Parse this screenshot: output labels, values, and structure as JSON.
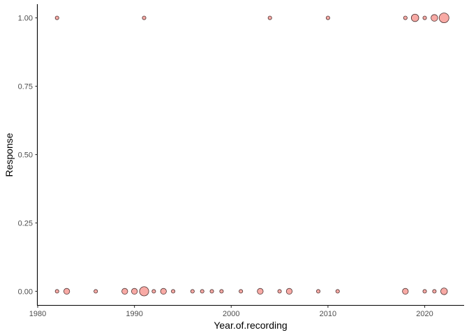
{
  "chart_data": {
    "type": "scatter",
    "title": "",
    "xlabel": "Year.of.recording",
    "ylabel": "Response",
    "xlim": [
      1980,
      2024
    ],
    "ylim": [
      -0.05,
      1.05
    ],
    "x_ticks": [
      1980,
      1990,
      2000,
      2010,
      2020
    ],
    "x_tick_labels": [
      "1980",
      "1990",
      "2000",
      "2010",
      "2020"
    ],
    "y_ticks": [
      0,
      0.25,
      0.5,
      0.75,
      1
    ],
    "y_tick_labels": [
      "0.00",
      "0.25",
      "0.50",
      "0.75",
      "1.00"
    ],
    "grid": false,
    "legend": "none",
    "point_fill": "#f8a5a0",
    "point_stroke": "#4a3030",
    "size_meaning": "count of observations",
    "points": [
      {
        "x": 1982,
        "y": 1,
        "n": 1
      },
      {
        "x": 1991,
        "y": 1,
        "n": 1
      },
      {
        "x": 2004,
        "y": 1,
        "n": 1
      },
      {
        "x": 2010,
        "y": 1,
        "n": 1
      },
      {
        "x": 2018,
        "y": 1,
        "n": 1
      },
      {
        "x": 2019,
        "y": 1,
        "n": 5
      },
      {
        "x": 2020,
        "y": 1,
        "n": 1
      },
      {
        "x": 2021,
        "y": 1,
        "n": 4
      },
      {
        "x": 2022,
        "y": 1,
        "n": 9
      },
      {
        "x": 1982,
        "y": 0,
        "n": 1
      },
      {
        "x": 1983,
        "y": 0,
        "n": 3
      },
      {
        "x": 1986,
        "y": 0,
        "n": 1
      },
      {
        "x": 1989,
        "y": 0,
        "n": 3
      },
      {
        "x": 1990,
        "y": 0,
        "n": 3
      },
      {
        "x": 1991,
        "y": 0,
        "n": 8
      },
      {
        "x": 1992,
        "y": 0,
        "n": 1
      },
      {
        "x": 1993,
        "y": 0,
        "n": 3
      },
      {
        "x": 1994,
        "y": 0,
        "n": 1
      },
      {
        "x": 1996,
        "y": 0,
        "n": 1
      },
      {
        "x": 1997,
        "y": 0,
        "n": 1
      },
      {
        "x": 1998,
        "y": 0,
        "n": 1
      },
      {
        "x": 1999,
        "y": 0,
        "n": 1
      },
      {
        "x": 2001,
        "y": 0,
        "n": 1
      },
      {
        "x": 2003,
        "y": 0,
        "n": 3
      },
      {
        "x": 2005,
        "y": 0,
        "n": 1
      },
      {
        "x": 2006,
        "y": 0,
        "n": 3
      },
      {
        "x": 2009,
        "y": 0,
        "n": 1
      },
      {
        "x": 2011,
        "y": 0,
        "n": 1
      },
      {
        "x": 2018,
        "y": 0,
        "n": 3
      },
      {
        "x": 2020,
        "y": 0,
        "n": 1
      },
      {
        "x": 2021,
        "y": 0,
        "n": 1
      },
      {
        "x": 2022,
        "y": 0,
        "n": 4
      }
    ]
  }
}
